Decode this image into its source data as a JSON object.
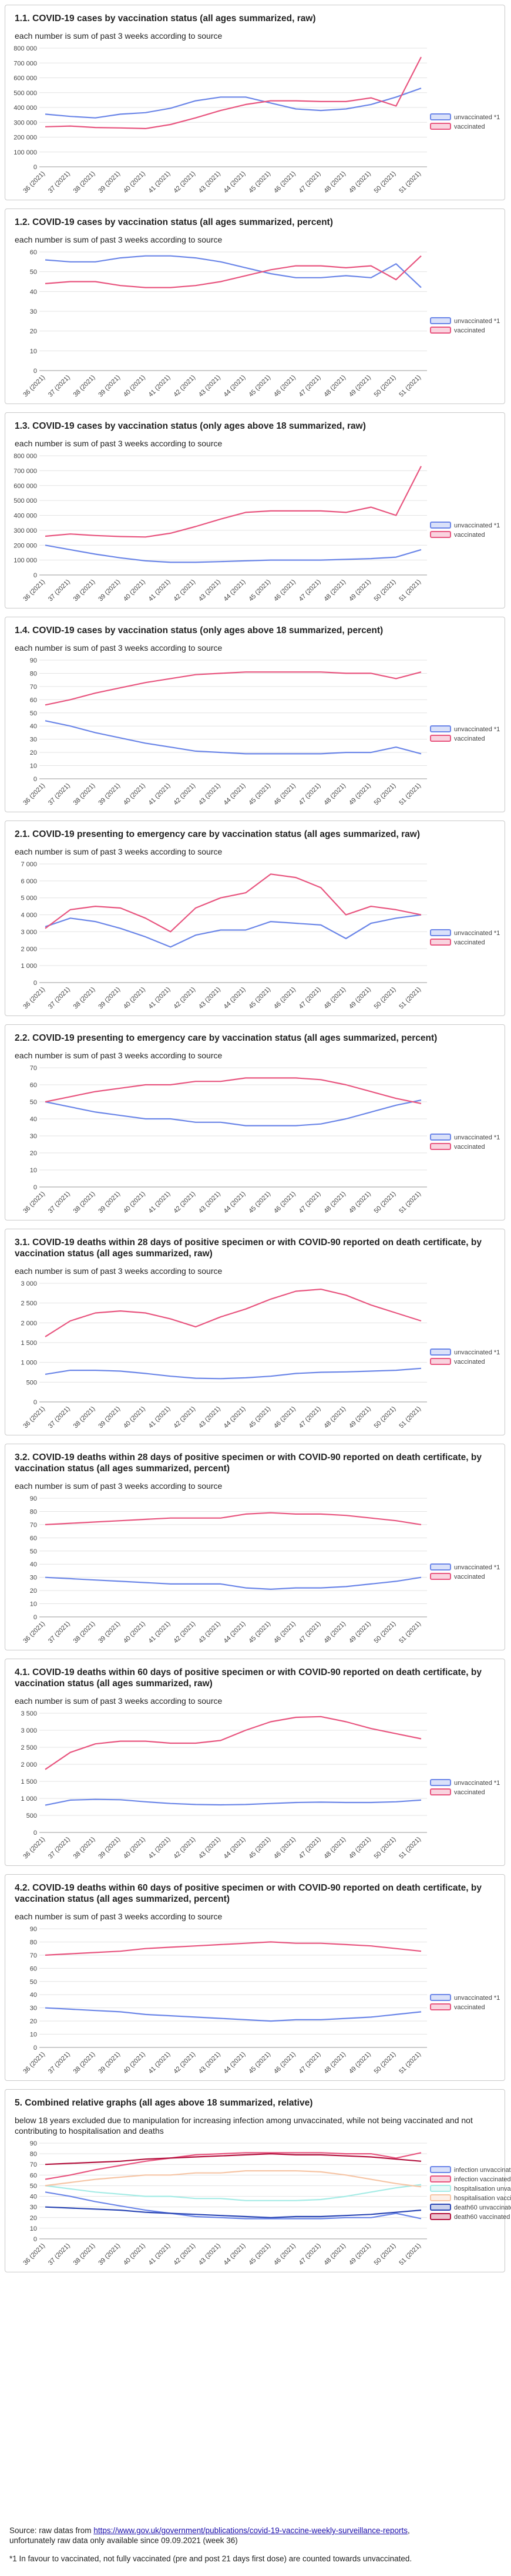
{
  "colors": {
    "unvaccinated": "#6b86e8",
    "vaccinated": "#e8557f",
    "hosp_unvac": "#a6ece6",
    "hosp_vac": "#f6c5a5",
    "death_unvac": "#2a46b4",
    "death_vac": "#b3123e"
  },
  "x_labels": [
    "36 (2021)",
    "37 (2021)",
    "38 (2021)",
    "39 (2021)",
    "40 (2021)",
    "41 (2021)",
    "42 (2021)",
    "43 (2021)",
    "44 (2021)",
    "45 (2021)",
    "46 (2021)",
    "47 (2021)",
    "48 (2021)",
    "49 (2021)",
    "50 (2021)",
    "51 (2021)"
  ],
  "footer": {
    "source_prefix": "Source: raw datas from ",
    "source_link": "https://www.gov.uk/government/publications/covid-19-vaccine-weekly-surveillance-reports",
    "source_suffix": ",",
    "source_line2": "unfortunately raw data only available since 09.09.2021 (week 36)",
    "note": "*1 In favour to vaccinated, not fully vaccinated (pre and post 21 days first dose) are counted towards unvaccinated."
  },
  "chart_data": [
    {
      "type": "line",
      "title": "1.1. COVID-19 cases by vaccination status (all ages summarized, raw)",
      "subtitle": "each number is sum of past 3 weeks according to source",
      "yticks": [
        "0",
        "100 000",
        "200 000",
        "300 000",
        "400 000",
        "500 000",
        "600 000",
        "700 000",
        "800 000"
      ],
      "ylim": [
        0,
        800000
      ],
      "series": [
        {
          "name": "unvaccinated *1",
          "values": [
            355000,
            340000,
            330000,
            355000,
            365000,
            395000,
            445000,
            470000,
            470000,
            430000,
            390000,
            380000,
            390000,
            420000,
            470000,
            530000
          ]
        },
        {
          "name": "vaccinated",
          "values": [
            270000,
            275000,
            265000,
            262000,
            258000,
            285000,
            330000,
            380000,
            420000,
            445000,
            445000,
            440000,
            440000,
            465000,
            410000,
            740000
          ]
        }
      ]
    },
    {
      "type": "line",
      "title": "1.2. COVID-19 cases by vaccination status (all ages summarized, percent)",
      "subtitle": "each number is sum of past 3 weeks according to source",
      "yticks": [
        "0",
        "10",
        "20",
        "30",
        "40",
        "50",
        "60"
      ],
      "ylim": [
        0,
        60
      ],
      "series": [
        {
          "name": "unvaccinated *1",
          "values": [
            56,
            55,
            55,
            57,
            58,
            58,
            57,
            55,
            52,
            49,
            47,
            47,
            48,
            47,
            54,
            42
          ]
        },
        {
          "name": "vaccinated",
          "values": [
            44,
            45,
            45,
            43,
            42,
            42,
            43,
            45,
            48,
            51,
            53,
            53,
            52,
            53,
            46,
            58
          ]
        }
      ]
    },
    {
      "type": "line",
      "title": "1.3. COVID-19 cases by vaccination status (only ages above 18 summarized, raw)",
      "subtitle": "each number is sum of past 3 weeks according to source",
      "yticks": [
        "0",
        "100 000",
        "200 000",
        "300 000",
        "400 000",
        "500 000",
        "600 000",
        "700 000",
        "800 000"
      ],
      "ylim": [
        0,
        800000
      ],
      "series": [
        {
          "name": "unvaccinated *1",
          "values": [
            200000,
            170000,
            140000,
            115000,
            95000,
            85000,
            85000,
            90000,
            95000,
            100000,
            100000,
            100000,
            105000,
            110000,
            120000,
            170000
          ]
        },
        {
          "name": "vaccinated",
          "values": [
            260000,
            275000,
            265000,
            258000,
            255000,
            280000,
            325000,
            375000,
            420000,
            430000,
            430000,
            430000,
            420000,
            455000,
            400000,
            730000
          ]
        }
      ]
    },
    {
      "type": "line",
      "title": "1.4. COVID-19 cases by vaccination status (only ages above 18 summarized, percent)",
      "subtitle": "each number is sum of past 3 weeks according to source",
      "yticks": [
        "0",
        "10",
        "20",
        "30",
        "40",
        "50",
        "60",
        "70",
        "80",
        "90"
      ],
      "ylim": [
        0,
        90
      ],
      "series": [
        {
          "name": "unvaccinated *1",
          "values": [
            44,
            40,
            35,
            31,
            27,
            24,
            21,
            20,
            19,
            19,
            19,
            19,
            20,
            20,
            24,
            19
          ]
        },
        {
          "name": "vaccinated",
          "values": [
            56,
            60,
            65,
            69,
            73,
            76,
            79,
            80,
            81,
            81,
            81,
            81,
            80,
            80,
            76,
            81
          ]
        }
      ]
    },
    {
      "type": "line",
      "title": "2.1. COVID-19 presenting to emergency care by vaccination status (all ages summarized, raw)",
      "subtitle": "each number is sum of past 3 weeks according to source",
      "yticks": [
        "0",
        "1 000",
        "2 000",
        "3 000",
        "4 000",
        "5 000",
        "6 000",
        "7 000"
      ],
      "ylim": [
        0,
        7000
      ],
      "series": [
        {
          "name": "unvaccinated *1",
          "values": [
            3300,
            3800,
            3600,
            3200,
            2700,
            2100,
            2800,
            3100,
            3100,
            3600,
            3500,
            3400,
            2600,
            3500,
            3800,
            4000
          ]
        },
        {
          "name": "vaccinated",
          "values": [
            3200,
            4300,
            4500,
            4400,
            3800,
            3000,
            4400,
            5000,
            5300,
            6400,
            6200,
            5600,
            4000,
            4500,
            4300,
            4000
          ]
        }
      ]
    },
    {
      "type": "line",
      "title": "2.2. COVID-19 presenting to emergency care by vaccination status (all ages summarized, percent)",
      "subtitle": "each number is sum of past 3 weeks according to source",
      "yticks": [
        "0",
        "10",
        "20",
        "30",
        "40",
        "50",
        "60",
        "70"
      ],
      "ylim": [
        0,
        70
      ],
      "series": [
        {
          "name": "unvaccinated *1",
          "values": [
            50,
            47,
            44,
            42,
            40,
            40,
            38,
            38,
            36,
            36,
            36,
            37,
            40,
            44,
            48,
            51
          ]
        },
        {
          "name": "vaccinated",
          "values": [
            50,
            53,
            56,
            58,
            60,
            60,
            62,
            62,
            64,
            64,
            64,
            63,
            60,
            56,
            52,
            49
          ]
        }
      ]
    },
    {
      "type": "line",
      "title": "3.1. COVID-19 deaths within 28 days of positive specimen or with COVID-90 reported on death certificate, by vaccination status (all ages summarized, raw)",
      "subtitle": "each number is sum of past 3 weeks according to source",
      "yticks": [
        "0",
        "500",
        "1 000",
        "1 500",
        "2 000",
        "2 500",
        "3 000"
      ],
      "ylim": [
        0,
        3000
      ],
      "series": [
        {
          "name": "unvaccinated *1",
          "values": [
            700,
            800,
            800,
            780,
            720,
            650,
            600,
            590,
            610,
            650,
            720,
            750,
            760,
            780,
            800,
            850
          ]
        },
        {
          "name": "vaccinated",
          "values": [
            1650,
            2050,
            2250,
            2300,
            2250,
            2100,
            1900,
            2150,
            2350,
            2600,
            2800,
            2850,
            2700,
            2450,
            2250,
            2050
          ]
        }
      ]
    },
    {
      "type": "line",
      "title": "3.2. COVID-19 deaths within 28 days of positive specimen or with COVID-90 reported on death certificate, by vaccination status (all ages summarized, percent)",
      "subtitle": "each number is sum of past 3 weeks according to source",
      "yticks": [
        "0",
        "10",
        "20",
        "30",
        "40",
        "50",
        "60",
        "70",
        "80",
        "90"
      ],
      "ylim": [
        0,
        90
      ],
      "series": [
        {
          "name": "unvaccinated *1",
          "values": [
            30,
            29,
            28,
            27,
            26,
            25,
            25,
            25,
            22,
            21,
            22,
            22,
            23,
            25,
            27,
            30
          ]
        },
        {
          "name": "vaccinated",
          "values": [
            70,
            71,
            72,
            73,
            74,
            75,
            75,
            75,
            78,
            79,
            78,
            78,
            77,
            75,
            73,
            70
          ]
        }
      ]
    },
    {
      "type": "line",
      "title": "4.1. COVID-19 deaths within 60 days of positive specimen or with COVID-90 reported on death certificate, by vaccination status (all ages summarized, raw)",
      "subtitle": "each number is sum of past 3 weeks according to source",
      "yticks": [
        "0",
        "500",
        "1 000",
        "1 500",
        "2 000",
        "2 500",
        "3 000",
        "3 500"
      ],
      "ylim": [
        0,
        3500
      ],
      "series": [
        {
          "name": "unvaccinated *1",
          "values": [
            800,
            950,
            970,
            960,
            900,
            850,
            820,
            810,
            820,
            850,
            880,
            890,
            880,
            880,
            900,
            950
          ]
        },
        {
          "name": "vaccinated",
          "values": [
            1850,
            2350,
            2600,
            2680,
            2680,
            2620,
            2620,
            2700,
            3000,
            3250,
            3380,
            3400,
            3250,
            3050,
            2900,
            2750
          ]
        }
      ]
    },
    {
      "type": "line",
      "title": "4.2. COVID-19 deaths within 60 days of positive specimen or with COVID-90 reported on death certificate, by vaccination status (all ages summarized, percent)",
      "subtitle": "each number is sum of past 3 weeks according to source",
      "yticks": [
        "0",
        "10",
        "20",
        "30",
        "40",
        "50",
        "60",
        "70",
        "80",
        "90"
      ],
      "ylim": [
        0,
        90
      ],
      "series": [
        {
          "name": "unvaccinated *1",
          "values": [
            30,
            29,
            28,
            27,
            25,
            24,
            23,
            22,
            21,
            20,
            21,
            21,
            22,
            23,
            25,
            27
          ]
        },
        {
          "name": "vaccinated",
          "values": [
            70,
            71,
            72,
            73,
            75,
            76,
            77,
            78,
            79,
            80,
            79,
            79,
            78,
            77,
            75,
            73
          ]
        }
      ]
    },
    {
      "type": "line",
      "title": "5. Combined relative graphs (all ages above 18 summarized, relative)",
      "subtitle": "below 18 years excluded due to manipulation for increasing infection among unvaccinated, while not being vaccinated and not contributing to hospitalisation and deaths",
      "yticks": [
        "0",
        "10",
        "20",
        "30",
        "40",
        "50",
        "60",
        "70",
        "80",
        "90"
      ],
      "ylim": [
        0,
        90
      ],
      "series": [
        {
          "name": "infection unvaccinated *1",
          "colorKey": "unvaccinated",
          "values": [
            44,
            40,
            35,
            31,
            27,
            24,
            21,
            20,
            19,
            19,
            19,
            19,
            20,
            20,
            24,
            19
          ]
        },
        {
          "name": "infection vaccinated",
          "colorKey": "vaccinated",
          "values": [
            56,
            60,
            65,
            69,
            73,
            76,
            79,
            80,
            81,
            81,
            81,
            81,
            80,
            80,
            76,
            81
          ]
        },
        {
          "name": "hospitalisation unvaccina",
          "colorKey": "hosp_unvac",
          "values": [
            50,
            47,
            44,
            42,
            40,
            40,
            38,
            38,
            36,
            36,
            36,
            37,
            40,
            44,
            48,
            51
          ]
        },
        {
          "name": "hospitalisation vaccinated",
          "colorKey": "hosp_vac",
          "values": [
            50,
            53,
            56,
            58,
            60,
            60,
            62,
            62,
            64,
            64,
            64,
            63,
            60,
            56,
            52,
            49
          ]
        },
        {
          "name": "death60 unvaccinated *1",
          "colorKey": "death_unvac",
          "values": [
            30,
            29,
            28,
            27,
            25,
            24,
            23,
            22,
            21,
            20,
            21,
            21,
            22,
            23,
            25,
            27
          ]
        },
        {
          "name": "death60 vaccinated",
          "colorKey": "death_vac",
          "values": [
            70,
            71,
            72,
            73,
            75,
            76,
            77,
            78,
            79,
            80,
            79,
            79,
            78,
            77,
            75,
            73
          ]
        }
      ]
    }
  ]
}
